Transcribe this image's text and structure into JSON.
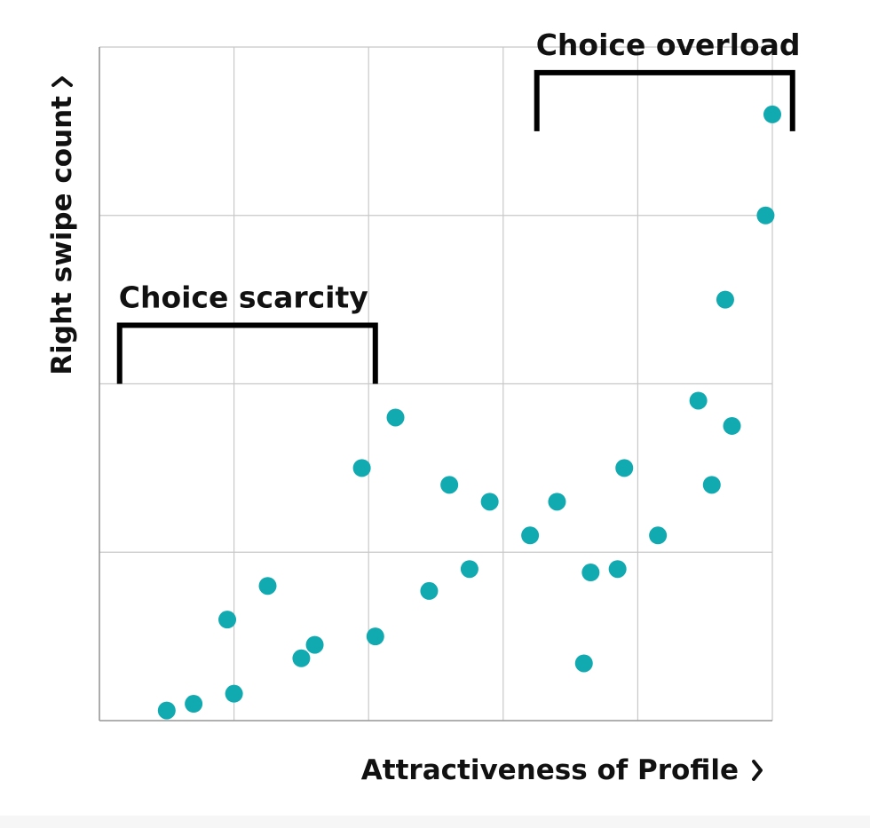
{
  "colors": {
    "points": "#12aab1",
    "bracket": "#000000",
    "grid": "#c8c8c8",
    "text": "#111111"
  },
  "chart_data": {
    "type": "scatter",
    "title": "",
    "xlabel": "Attractiveness of Profile",
    "ylabel": "Right swipe count",
    "axis_chevron": "right-chevron-icon",
    "xlim": [
      0,
      5
    ],
    "ylim": [
      0,
      4
    ],
    "grid": true,
    "tick_labels_shown": false,
    "points": [
      {
        "x": 0.5,
        "y": 0.06
      },
      {
        "x": 0.7,
        "y": 0.1
      },
      {
        "x": 0.95,
        "y": 0.6
      },
      {
        "x": 1.0,
        "y": 0.16
      },
      {
        "x": 1.25,
        "y": 0.8
      },
      {
        "x": 1.5,
        "y": 0.37
      },
      {
        "x": 1.6,
        "y": 0.45
      },
      {
        "x": 1.95,
        "y": 1.5
      },
      {
        "x": 2.05,
        "y": 0.5
      },
      {
        "x": 2.2,
        "y": 1.8
      },
      {
        "x": 2.45,
        "y": 0.77
      },
      {
        "x": 2.6,
        "y": 1.4
      },
      {
        "x": 2.75,
        "y": 0.9
      },
      {
        "x": 2.9,
        "y": 1.3
      },
      {
        "x": 3.2,
        "y": 1.1
      },
      {
        "x": 3.4,
        "y": 1.3
      },
      {
        "x": 3.6,
        "y": 0.34
      },
      {
        "x": 3.65,
        "y": 0.88
      },
      {
        "x": 3.85,
        "y": 0.9
      },
      {
        "x": 3.9,
        "y": 1.5
      },
      {
        "x": 4.15,
        "y": 1.1
      },
      {
        "x": 4.45,
        "y": 1.9
      },
      {
        "x": 4.55,
        "y": 1.4
      },
      {
        "x": 4.65,
        "y": 2.5
      },
      {
        "x": 4.7,
        "y": 1.75
      },
      {
        "x": 4.95,
        "y": 3.0
      },
      {
        "x": 5.0,
        "y": 3.6
      }
    ],
    "annotations": [
      {
        "text": "Choice scarcity",
        "x_range": [
          0.15,
          2.05
        ],
        "y": 2.0
      },
      {
        "text": "Choice overload",
        "x_range": [
          3.25,
          5.15
        ],
        "y": 3.5
      }
    ]
  }
}
